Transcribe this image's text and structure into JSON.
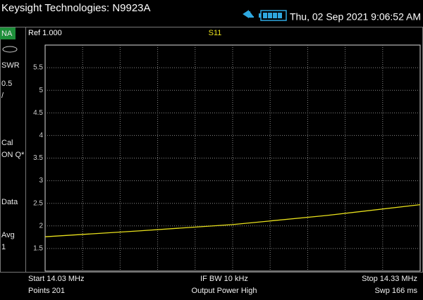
{
  "header": {
    "title": "Keysight Technologies: N9923A",
    "datetime": "Thu, 02 Sep 2021 9:06:52 AM"
  },
  "sidebar": {
    "mode": "NA",
    "items": [
      "SWR",
      "0.5",
      "/",
      "Cal",
      "ON Q*",
      "Data",
      "Avg",
      "1"
    ]
  },
  "chart_data": {
    "type": "line",
    "reference": "Ref 1.000",
    "title": "S11",
    "x": [
      14.03,
      14.105,
      14.18,
      14.255,
      14.33
    ],
    "series": [
      {
        "name": "S11",
        "color": "#e8e01c",
        "values": [
          1.76,
          1.89,
          2.03,
          2.23,
          2.47
        ]
      }
    ],
    "xlim": [
      14.03,
      14.33
    ],
    "ylim": [
      1,
      6
    ],
    "yticks": [
      1.5,
      2,
      2.5,
      3,
      3.5,
      4,
      4.5,
      5,
      5.5
    ],
    "grid": true
  },
  "footer": {
    "rows": [
      [
        "Start 14.03 MHz",
        "IF BW 10 kHz",
        "Stop 14.33 MHz"
      ],
      [
        "Points 201",
        "Output Power High",
        "Swp 166 ms"
      ]
    ]
  }
}
